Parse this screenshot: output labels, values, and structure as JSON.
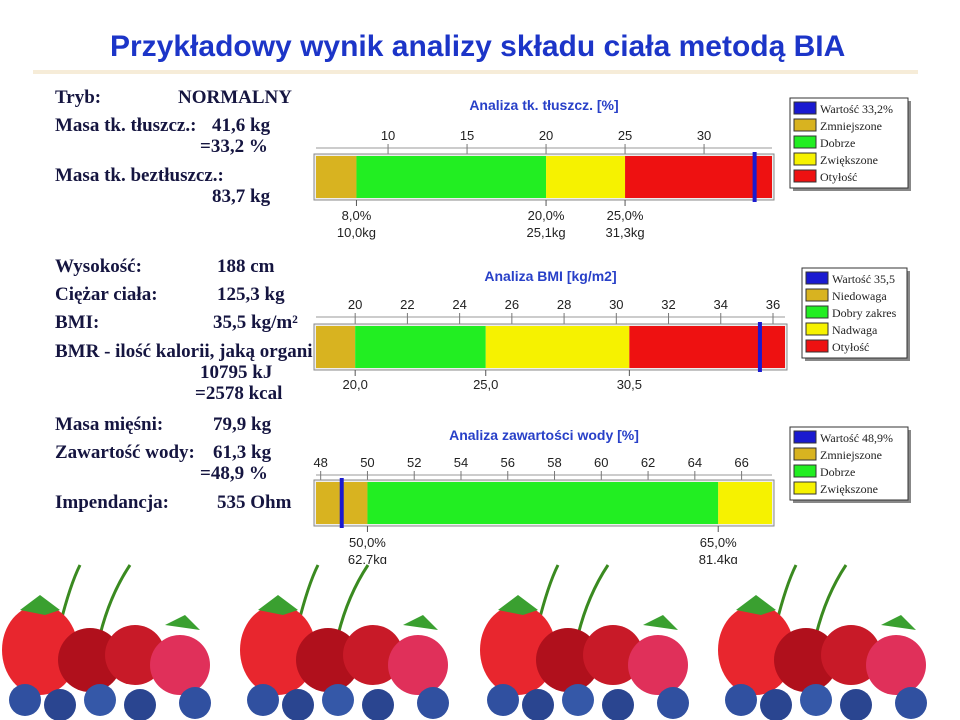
{
  "title": "Przykładowy wynik analizy składu ciała metodą BIA",
  "measurements": [
    {
      "label": "Tryb:",
      "values": [
        "NORMALNY"
      ]
    },
    {
      "label": "Masa tk. tłuszcz.:",
      "values": [
        "41,6 kg",
        "=33,2 %"
      ]
    },
    {
      "label": "Masa tk. beztłuszcz.:",
      "values": [
        "83,7 kg"
      ]
    },
    {
      "label": "Wysokość:",
      "values": [
        "188 cm"
      ]
    },
    {
      "label": "Ciężar ciała:",
      "values": [
        "125,3 kg"
      ]
    },
    {
      "label": "BMI:",
      "values": [
        "35,5 kg/m²"
      ]
    },
    {
      "label": "BMR - ilość kalorii, jaką organi",
      "values": [
        "10795 kJ",
        "=2578 kcal"
      ]
    },
    {
      "label": "Masa mięśni:",
      "values": [
        "79,9 kg"
      ]
    },
    {
      "label": "Zawartość wody:",
      "values": [
        "61,3 kg",
        "=48,9 %"
      ]
    },
    {
      "label": "Impendancja:",
      "values": [
        "535 Ohm"
      ]
    }
  ],
  "panels": [
    {
      "title": "Analiza tk. tłuszcz. [%]",
      "xlim": [
        5.44,
        34.3
      ],
      "xticks": [
        10,
        15,
        20,
        25,
        30
      ],
      "segments": [
        {
          "from": 5.44,
          "to": 8,
          "color": "#d8b320"
        },
        {
          "from": 8,
          "to": 20,
          "color": "#22ee22"
        },
        {
          "from": 20,
          "to": 25,
          "color": "#f6f200"
        },
        {
          "from": 25,
          "to": 34.3,
          "color": "#ee1111"
        }
      ],
      "marker": 33.2,
      "marker_color": "#1a1ad0",
      "boundaries": [
        {
          "value": 8,
          "labels": [
            "8,0%",
            "10,0kg"
          ]
        },
        {
          "value": 20,
          "labels": [
            "20,0%",
            "25,1kg"
          ]
        },
        {
          "value": 25,
          "labels": [
            "25,0%",
            "31,3kg"
          ]
        }
      ],
      "legend": [
        {
          "name": "Wartość 33,2%",
          "color": "#1a1ad0"
        },
        {
          "name": "Zmniejszone",
          "color": "#d8b320"
        },
        {
          "name": "Dobrze",
          "color": "#22ee22"
        },
        {
          "name": "Zwiększone",
          "color": "#f6f200"
        },
        {
          "name": "Otyłość",
          "color": "#ee1111"
        }
      ]
    },
    {
      "title": "Analiza BMI [kg/m2]",
      "xlim": [
        18.5,
        36.46
      ],
      "xticks": [
        20,
        22,
        24,
        26,
        28,
        30,
        32,
        34,
        36
      ],
      "segments": [
        {
          "from": 18.5,
          "to": 20,
          "color": "#d8b320"
        },
        {
          "from": 20,
          "to": 25,
          "color": "#22ee22"
        },
        {
          "from": 25,
          "to": 30.5,
          "color": "#f6f200"
        },
        {
          "from": 30.5,
          "to": 36.46,
          "color": "#ee1111"
        }
      ],
      "marker": 35.5,
      "marker_color": "#1a1ad0",
      "boundaries": [
        {
          "value": 20,
          "labels": [
            "20,0"
          ]
        },
        {
          "value": 25,
          "labels": [
            "25,0"
          ]
        },
        {
          "value": 30.5,
          "labels": [
            "30,5"
          ]
        }
      ],
      "legend": [
        {
          "name": "Wartość 35,5",
          "color": "#1a1ad0"
        },
        {
          "name": "Niedowaga",
          "color": "#d8b320"
        },
        {
          "name": "Dobry zakres",
          "color": "#22ee22"
        },
        {
          "name": "Nadwaga",
          "color": "#f6f200"
        },
        {
          "name": "Otyłość",
          "color": "#ee1111"
        }
      ]
    },
    {
      "title": "Analiza zawartości wody [%]",
      "xlim": [
        47.8,
        67.3
      ],
      "xticks": [
        48,
        50,
        52,
        54,
        56,
        58,
        60,
        62,
        64,
        66
      ],
      "segments": [
        {
          "from": 47.8,
          "to": 50,
          "color": "#d8b320"
        },
        {
          "from": 50,
          "to": 65,
          "color": "#22ee22"
        },
        {
          "from": 65,
          "to": 67.3,
          "color": "#f6f200"
        }
      ],
      "marker": 48.9,
      "marker_color": "#1a1ad0",
      "boundaries": [
        {
          "value": 50,
          "labels": [
            "50,0%",
            "62,7kg"
          ]
        },
        {
          "value": 65,
          "labels": [
            "65,0%",
            "81,4kg"
          ]
        }
      ],
      "legend": [
        {
          "name": "Wartość 48,9%",
          "color": "#1a1ad0"
        },
        {
          "name": "Zmniejszone",
          "color": "#d8b320"
        },
        {
          "name": "Dobrze",
          "color": "#22ee22"
        },
        {
          "name": "Zwiększone",
          "color": "#f6f200"
        }
      ]
    }
  ]
}
